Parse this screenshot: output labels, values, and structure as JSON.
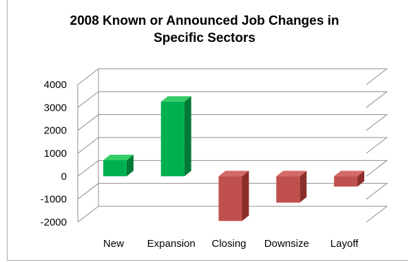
{
  "chart_data": {
    "type": "bar",
    "title": "2008 Known or Announced Job Changes in Specific Sectors",
    "title_lines": [
      "2008 Known or Announced Job Changes in",
      "Specific Sectors"
    ],
    "categories": [
      "New",
      "Expansion",
      "Closing",
      "Downsize",
      "Layoff"
    ],
    "values": [
      700,
      3250,
      -1950,
      -1150,
      -450
    ],
    "ylim": [
      -2000,
      4000
    ],
    "yticks": [
      4000,
      3000,
      2000,
      1000,
      0,
      -1000,
      -2000
    ],
    "grid": true,
    "three_d": true,
    "legend": "none",
    "xlabel": "",
    "ylabel": ""
  },
  "colors": {
    "positive_front": "#00b050",
    "positive_side": "#007a36",
    "positive_top": "#33cc66",
    "negative_front": "#c0504d",
    "negative_side": "#8c2f2c",
    "negative_top": "#d46a66",
    "gridline": "#8c8c8c"
  }
}
